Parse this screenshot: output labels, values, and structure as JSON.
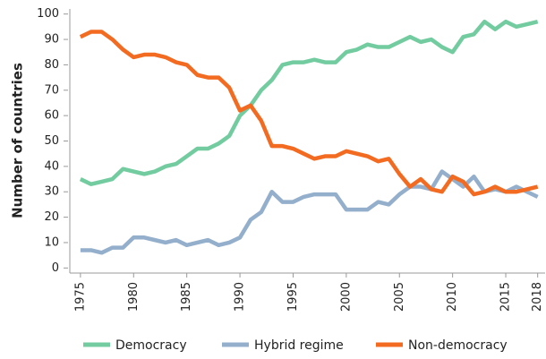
{
  "chart_data": {
    "type": "line",
    "ylabel": "Number of countries",
    "x": [
      1975,
      1976,
      1977,
      1978,
      1979,
      1980,
      1981,
      1982,
      1983,
      1984,
      1985,
      1986,
      1987,
      1988,
      1989,
      1990,
      1991,
      1992,
      1993,
      1994,
      1995,
      1996,
      1997,
      1998,
      1999,
      2000,
      2001,
      2002,
      2003,
      2004,
      2005,
      2006,
      2007,
      2008,
      2009,
      2010,
      2011,
      2012,
      2013,
      2014,
      2015,
      2016,
      2017,
      2018
    ],
    "series": [
      {
        "name": "Democracy",
        "color": "#72cca0",
        "values": [
          35,
          33,
          34,
          35,
          39,
          38,
          37,
          38,
          40,
          41,
          44,
          47,
          47,
          49,
          52,
          60,
          64,
          70,
          74,
          80,
          81,
          81,
          82,
          81,
          81,
          85,
          86,
          88,
          87,
          87,
          89,
          91,
          89,
          90,
          87,
          85,
          91,
          92,
          97,
          94,
          97,
          95,
          96,
          97
        ]
      },
      {
        "name": "Hybrid regime",
        "color": "#93afcc",
        "values": [
          7,
          7,
          6,
          8,
          8,
          12,
          12,
          11,
          10,
          11,
          9,
          10,
          11,
          9,
          10,
          12,
          19,
          22,
          30,
          26,
          26,
          28,
          29,
          29,
          29,
          23,
          23,
          23,
          26,
          25,
          29,
          32,
          32,
          31,
          38,
          35,
          32,
          36,
          30,
          31,
          30,
          32,
          30,
          28
        ]
      },
      {
        "name": "Non-democracy",
        "color": "#f26b21",
        "values": [
          91,
          93,
          93,
          90,
          86,
          83,
          84,
          84,
          83,
          81,
          80,
          76,
          75,
          75,
          71,
          62,
          64,
          58,
          48,
          48,
          47,
          45,
          43,
          44,
          44,
          46,
          45,
          44,
          42,
          43,
          37,
          32,
          35,
          31,
          30,
          36,
          34,
          29,
          30,
          32,
          30,
          30,
          31,
          32
        ]
      }
    ],
    "xlim": [
      1974,
      2018.7
    ],
    "xticks": [
      1975,
      1980,
      1985,
      1990,
      1995,
      2000,
      2005,
      2010,
      2015,
      2018
    ],
    "ylim": [
      -2,
      102
    ],
    "yticks": [
      0,
      10,
      20,
      30,
      40,
      50,
      60,
      70,
      80,
      90,
      100
    ],
    "legend": "bottom"
  }
}
